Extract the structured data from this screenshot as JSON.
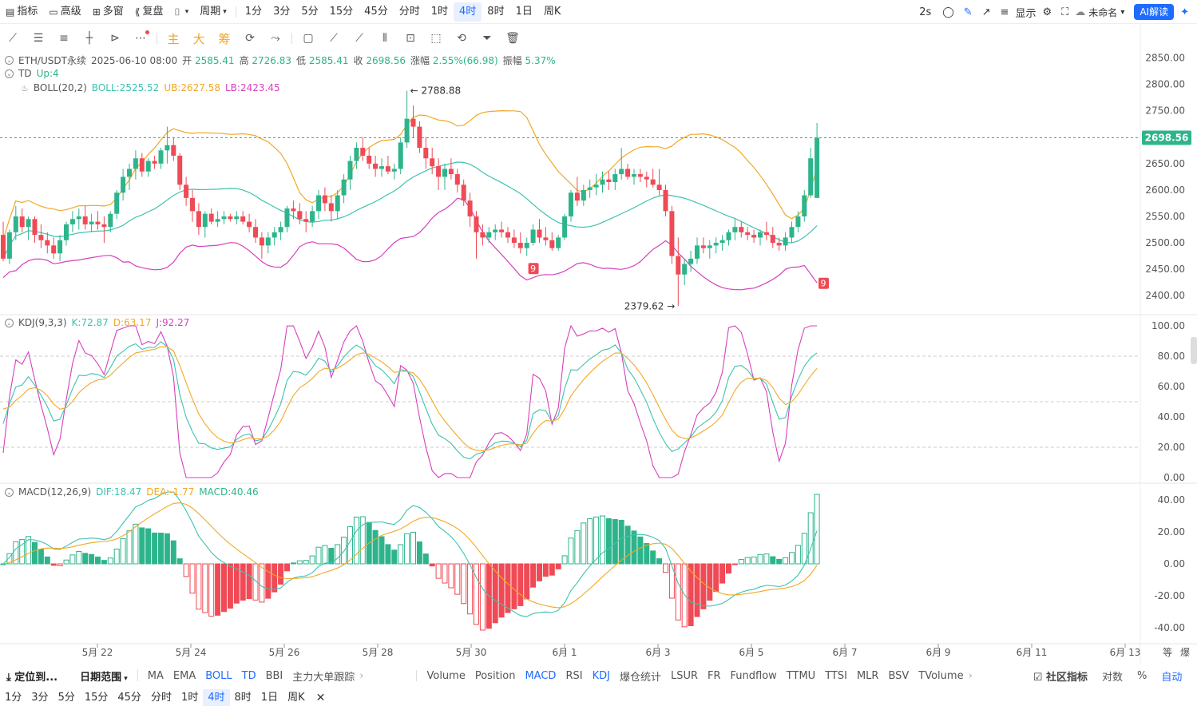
{
  "toolbar": {
    "items": [
      "指标",
      "高级",
      "多窗",
      "复盘",
      "",
      "周期",
      "1分",
      "3分",
      "5分",
      "15分",
      "45分",
      "分时",
      "1时",
      "4时",
      "8时",
      "1日",
      "周K"
    ],
    "active": "4时",
    "right": {
      "interval": "2s",
      "display": "显示",
      "layout": "未命名",
      "ai": "AI解读"
    }
  },
  "drawing_tools": {
    "labels": [
      "主",
      "大",
      "筹"
    ]
  },
  "main_legend": {
    "symbol": "ETH/USDT永续",
    "date": "2025-06-10 08:00",
    "open_l": "开",
    "open": "2585.41",
    "high_l": "高",
    "high": "2726.83",
    "low_l": "低",
    "low": "2585.41",
    "close_l": "收",
    "close": "2698.56",
    "chg_l": "涨幅",
    "chg": "2.55%(66.98)",
    "amp_l": "振幅",
    "amp": "5.37%"
  },
  "td_legend": {
    "name": "TD",
    "value": "Up:4"
  },
  "boll_legend": {
    "name": "BOLL(20,2)",
    "mid": "BOLL:2525.52",
    "ub": "UB:2627.58",
    "lb": "LB:2423.45"
  },
  "kdj_legend": {
    "name": "KDJ(9,3,3)",
    "k": "K:72.87",
    "d": "D:63.17",
    "j": "J:92.27"
  },
  "macd_legend": {
    "name": "MACD(12,26,9)",
    "dif": "DIF:18.47",
    "dea": "DEA:-1.77",
    "macd": "MACD:40.46"
  },
  "price_axis": [
    "2850.00",
    "2800.00",
    "2750.00",
    "2700.00",
    "2650.00",
    "2600.00",
    "2550.00",
    "2500.00",
    "2450.00",
    "2400.00"
  ],
  "price_tag": "2698.56",
  "kdj_axis": [
    "100.00",
    "80.00",
    "60.00",
    "40.00",
    "20.00",
    "0.00"
  ],
  "macd_axis": [
    "40.00",
    "20.00",
    "0.00",
    "-20.00",
    "-40.00"
  ],
  "date_axis": [
    "5月 22",
    "5月 24",
    "5月 26",
    "5月 28",
    "5月 30",
    "6月 1",
    "6月 3",
    "6月 5",
    "6月 7",
    "6月 9",
    "6月 11",
    "6月 13"
  ],
  "axis_corner": [
    "等",
    "爆"
  ],
  "annotations": {
    "high": "2788.88",
    "low": "2379.62",
    "td9a": "9",
    "td9b": "9"
  },
  "bottom_bar": {
    "locate": "定位到...",
    "range": "日期范围",
    "main": [
      "MA",
      "EMA",
      "BOLL",
      "TD",
      "BBI",
      "主力大单跟踪"
    ],
    "main_active": [
      "BOLL",
      "TD"
    ],
    "sub": [
      "Volume",
      "Position",
      "MACD",
      "RSI",
      "KDJ",
      "爆仓统计",
      "LSUR",
      "FR",
      "Fundflow",
      "TTMU",
      "TTSI",
      "MLR",
      "BSV",
      "TVolume"
    ],
    "sub_active": [
      "MACD",
      "KDJ"
    ],
    "right": [
      "社区指标",
      "对数",
      "%",
      "自动"
    ]
  },
  "bottom_periods": {
    "items": [
      "1分",
      "3分",
      "5分",
      "15分",
      "45分",
      "分时",
      "1时",
      "4时",
      "8时",
      "1日",
      "周K"
    ],
    "active": "4时"
  },
  "colors": {
    "up": "#2db48b",
    "down": "#ef4a55",
    "mid": "#3dc2b0",
    "ub": "#f2a825",
    "lb": "#d83fbf",
    "blue": "#1e6bff"
  },
  "chart_data": {
    "type": "candlestick",
    "candles": [
      [
        2515,
        2540,
        2465,
        2470
      ],
      [
        2470,
        2525,
        2460,
        2520
      ],
      [
        2520,
        2570,
        2505,
        2550
      ],
      [
        2550,
        2565,
        2520,
        2530
      ],
      [
        2530,
        2550,
        2505,
        2545
      ],
      [
        2545,
        2550,
        2500,
        2515
      ],
      [
        2515,
        2535,
        2490,
        2505
      ],
      [
        2505,
        2520,
        2480,
        2495
      ],
      [
        2495,
        2510,
        2470,
        2480
      ],
      [
        2480,
        2515,
        2465,
        2505
      ],
      [
        2505,
        2540,
        2495,
        2535
      ],
      [
        2535,
        2560,
        2520,
        2545
      ],
      [
        2545,
        2565,
        2525,
        2550
      ],
      [
        2550,
        2570,
        2525,
        2535
      ],
      [
        2535,
        2555,
        2520,
        2540
      ],
      [
        2540,
        2560,
        2525,
        2535
      ],
      [
        2535,
        2550,
        2500,
        2530
      ],
      [
        2530,
        2560,
        2520,
        2555
      ],
      [
        2555,
        2600,
        2545,
        2595
      ],
      [
        2595,
        2640,
        2580,
        2625
      ],
      [
        2625,
        2650,
        2600,
        2640
      ],
      [
        2640,
        2675,
        2620,
        2660
      ],
      [
        2660,
        2670,
        2625,
        2635
      ],
      [
        2635,
        2660,
        2625,
        2655
      ],
      [
        2655,
        2665,
        2640,
        2650
      ],
      [
        2650,
        2680,
        2640,
        2675
      ],
      [
        2675,
        2720,
        2650,
        2685
      ],
      [
        2685,
        2700,
        2655,
        2665
      ],
      [
        2665,
        2670,
        2600,
        2610
      ],
      [
        2610,
        2625,
        2570,
        2585
      ],
      [
        2585,
        2600,
        2540,
        2560
      ],
      [
        2560,
        2575,
        2515,
        2530
      ],
      [
        2530,
        2560,
        2510,
        2555
      ],
      [
        2555,
        2565,
        2535,
        2540
      ],
      [
        2540,
        2560,
        2530,
        2545
      ],
      [
        2545,
        2560,
        2535,
        2550
      ],
      [
        2550,
        2555,
        2540,
        2545
      ],
      [
        2545,
        2560,
        2535,
        2550
      ],
      [
        2550,
        2560,
        2535,
        2540
      ],
      [
        2540,
        2555,
        2520,
        2530
      ],
      [
        2530,
        2545,
        2500,
        2510
      ],
      [
        2510,
        2520,
        2470,
        2495
      ],
      [
        2495,
        2520,
        2480,
        2510
      ],
      [
        2510,
        2530,
        2495,
        2520
      ],
      [
        2520,
        2540,
        2505,
        2530
      ],
      [
        2530,
        2570,
        2520,
        2565
      ],
      [
        2565,
        2580,
        2545,
        2560
      ],
      [
        2560,
        2575,
        2535,
        2545
      ],
      [
        2545,
        2560,
        2520,
        2540
      ],
      [
        2540,
        2570,
        2530,
        2560
      ],
      [
        2560,
        2600,
        2545,
        2590
      ],
      [
        2590,
        2605,
        2560,
        2575
      ],
      [
        2575,
        2590,
        2540,
        2560
      ],
      [
        2560,
        2600,
        2545,
        2590
      ],
      [
        2590,
        2630,
        2575,
        2620
      ],
      [
        2620,
        2665,
        2600,
        2655
      ],
      [
        2655,
        2690,
        2640,
        2680
      ],
      [
        2680,
        2700,
        2655,
        2665
      ],
      [
        2665,
        2680,
        2640,
        2650
      ],
      [
        2650,
        2665,
        2625,
        2640
      ],
      [
        2640,
        2660,
        2625,
        2645
      ],
      [
        2645,
        2665,
        2630,
        2635
      ],
      [
        2635,
        2650,
        2620,
        2640
      ],
      [
        2640,
        2700,
        2630,
        2690
      ],
      [
        2690,
        2788,
        2680,
        2735
      ],
      [
        2735,
        2760,
        2700,
        2720
      ],
      [
        2720,
        2730,
        2670,
        2680
      ],
      [
        2680,
        2700,
        2640,
        2660
      ],
      [
        2660,
        2680,
        2630,
        2645
      ],
      [
        2645,
        2660,
        2600,
        2625
      ],
      [
        2625,
        2650,
        2600,
        2640
      ],
      [
        2640,
        2660,
        2620,
        2630
      ],
      [
        2630,
        2640,
        2595,
        2610
      ],
      [
        2610,
        2620,
        2570,
        2580
      ],
      [
        2580,
        2595,
        2530,
        2550
      ],
      [
        2550,
        2560,
        2470,
        2520
      ],
      [
        2520,
        2535,
        2495,
        2510
      ],
      [
        2510,
        2530,
        2500,
        2520
      ],
      [
        2520,
        2535,
        2505,
        2525
      ],
      [
        2525,
        2540,
        2510,
        2520
      ],
      [
        2520,
        2530,
        2500,
        2510
      ],
      [
        2510,
        2525,
        2490,
        2500
      ],
      [
        2500,
        2520,
        2480,
        2490
      ],
      [
        2490,
        2510,
        2475,
        2500
      ],
      [
        2500,
        2535,
        2495,
        2525
      ],
      [
        2525,
        2545,
        2500,
        2510
      ],
      [
        2510,
        2530,
        2495,
        2505
      ],
      [
        2505,
        2520,
        2485,
        2490
      ],
      [
        2490,
        2515,
        2485,
        2510
      ],
      [
        2510,
        2555,
        2505,
        2550
      ],
      [
        2550,
        2600,
        2540,
        2595
      ],
      [
        2595,
        2625,
        2570,
        2580
      ],
      [
        2580,
        2610,
        2570,
        2600
      ],
      [
        2600,
        2620,
        2585,
        2605
      ],
      [
        2605,
        2630,
        2590,
        2610
      ],
      [
        2610,
        2635,
        2595,
        2620
      ],
      [
        2620,
        2635,
        2600,
        2615
      ],
      [
        2615,
        2640,
        2600,
        2630
      ],
      [
        2630,
        2680,
        2620,
        2640
      ],
      [
        2640,
        2650,
        2620,
        2625
      ],
      [
        2625,
        2640,
        2610,
        2630
      ],
      [
        2630,
        2640,
        2615,
        2625
      ],
      [
        2625,
        2635,
        2605,
        2620
      ],
      [
        2620,
        2640,
        2605,
        2610
      ],
      [
        2610,
        2640,
        2590,
        2600
      ],
      [
        2600,
        2610,
        2550,
        2560
      ],
      [
        2560,
        2570,
        2460,
        2475
      ],
      [
        2475,
        2510,
        2380,
        2440
      ],
      [
        2440,
        2470,
        2420,
        2460
      ],
      [
        2460,
        2485,
        2445,
        2470
      ],
      [
        2470,
        2510,
        2460,
        2495
      ],
      [
        2495,
        2510,
        2480,
        2490
      ],
      [
        2490,
        2505,
        2470,
        2495
      ],
      [
        2495,
        2510,
        2480,
        2500
      ],
      [
        2500,
        2515,
        2485,
        2505
      ],
      [
        2505,
        2525,
        2495,
        2520
      ],
      [
        2520,
        2545,
        2505,
        2530
      ],
      [
        2530,
        2540,
        2510,
        2520
      ],
      [
        2520,
        2530,
        2505,
        2515
      ],
      [
        2515,
        2525,
        2500,
        2510
      ],
      [
        2510,
        2525,
        2495,
        2520
      ],
      [
        2520,
        2540,
        2505,
        2515
      ],
      [
        2515,
        2530,
        2490,
        2500
      ],
      [
        2500,
        2510,
        2485,
        2495
      ],
      [
        2495,
        2520,
        2485,
        2510
      ],
      [
        2510,
        2540,
        2500,
        2530
      ],
      [
        2530,
        2560,
        2520,
        2550
      ],
      [
        2550,
        2600,
        2540,
        2590
      ],
      [
        2590,
        2680,
        2585,
        2660
      ],
      [
        2585,
        2727,
        2585,
        2699
      ]
    ],
    "y_range": [
      2370,
      2860
    ],
    "kdj_range": [
      0,
      100
    ],
    "macd_range": [
      -45,
      45
    ]
  }
}
